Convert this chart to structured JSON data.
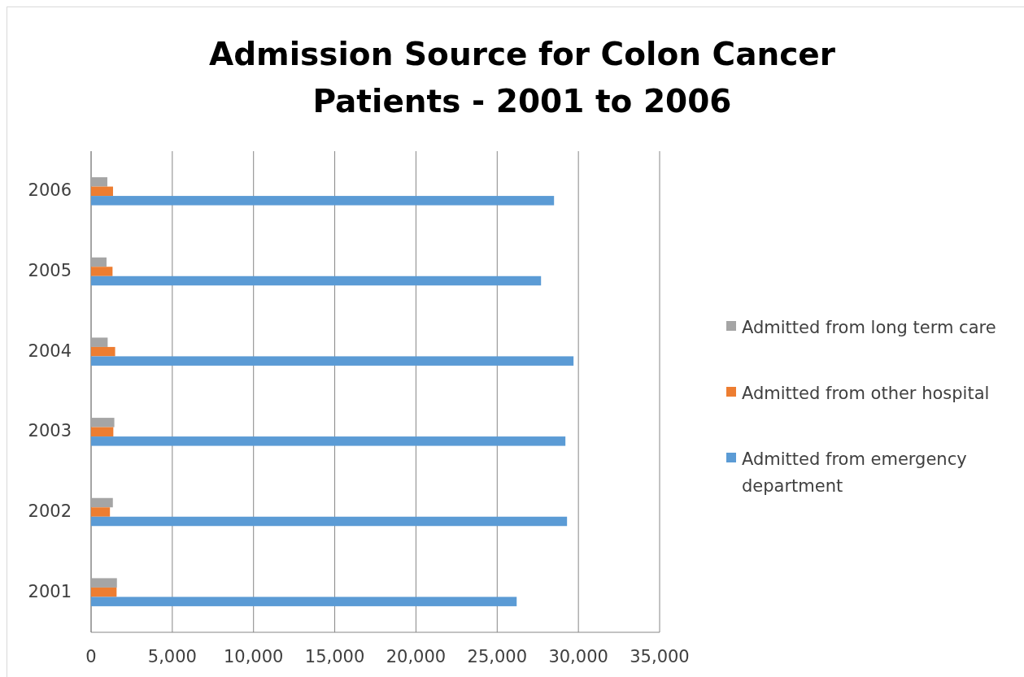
{
  "chart_data": {
    "type": "bar",
    "orientation": "horizontal",
    "title": "Admission Source for Colon Cancer Patients - 2001 to 2006",
    "categories": [
      "2006",
      "2005",
      "2004",
      "2003",
      "2002",
      "2001"
    ],
    "series": [
      {
        "name": "Admitted from long term care",
        "color": "#a5a5a5",
        "values": [
          1000,
          950,
          1020,
          1430,
          1340,
          1590
        ]
      },
      {
        "name": "Admitted from other hospital",
        "color": "#ed7d31",
        "values": [
          1350,
          1320,
          1480,
          1370,
          1160,
          1570
        ]
      },
      {
        "name": "Admitted from emergency department",
        "color": "#5b9bd5",
        "values": [
          28500,
          27700,
          29700,
          29200,
          29300,
          26200
        ]
      }
    ],
    "xlim": [
      0,
      35000
    ],
    "xticks": [
      {
        "value": 0,
        "label": "0"
      },
      {
        "value": 5000,
        "label": "5,000"
      },
      {
        "value": 10000,
        "label": "10,000"
      },
      {
        "value": 15000,
        "label": "15,000"
      },
      {
        "value": 20000,
        "label": "20,000"
      },
      {
        "value": 25000,
        "label": "25,000"
      },
      {
        "value": 30000,
        "label": "30,000"
      },
      {
        "value": 35000,
        "label": "35,000"
      }
    ],
    "grid": "x",
    "legend": "right"
  }
}
